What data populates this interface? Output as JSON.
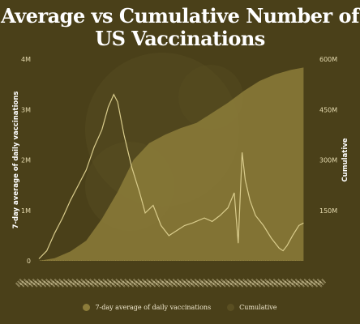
{
  "title": "Average vs Cumulative Number of\nUS Vaccinations",
  "colors": {
    "background": "#4a4019",
    "daily_line": "#d9cc8c",
    "cumulative_fill": "#8c7c3a",
    "text": "#ffffff"
  },
  "legend": [
    {
      "label": "7-day average of daily vaccinations",
      "color": "#8c7c3a"
    },
    {
      "label": "Cumulative",
      "color": "#5a4f22"
    }
  ],
  "chart_data": {
    "type": "line",
    "title": "Average vs Cumulative Number of US Vaccinations",
    "x_unit": "day index",
    "x_range": [
      0,
      350
    ],
    "left_axis": {
      "label": "7-day average of daily vaccinations",
      "ticks": [
        "0",
        "1M",
        "2M",
        "3M",
        "4M"
      ],
      "range": [
        0,
        4000000
      ]
    },
    "right_axis": {
      "label": "Cumulative",
      "ticks": [
        "150M",
        "300M",
        "450M",
        "600M"
      ],
      "range": [
        0,
        600000000
      ]
    },
    "x_tick_labels": "dense rotated date labels (illegible)",
    "series": [
      {
        "name": "7-day average of daily vaccinations",
        "axis": "left",
        "style": "line",
        "points": [
          [
            0,
            40000
          ],
          [
            10,
            200000
          ],
          [
            20,
            550000
          ],
          [
            30,
            850000
          ],
          [
            40,
            1200000
          ],
          [
            50,
            1500000
          ],
          [
            60,
            1800000
          ],
          [
            70,
            2250000
          ],
          [
            80,
            2600000
          ],
          [
            88,
            3050000
          ],
          [
            95,
            3300000
          ],
          [
            100,
            3150000
          ],
          [
            108,
            2500000
          ],
          [
            118,
            1850000
          ],
          [
            128,
            1350000
          ],
          [
            135,
            950000
          ],
          [
            145,
            1100000
          ],
          [
            155,
            700000
          ],
          [
            165,
            500000
          ],
          [
            175,
            600000
          ],
          [
            185,
            700000
          ],
          [
            195,
            750000
          ],
          [
            210,
            850000
          ],
          [
            220,
            780000
          ],
          [
            230,
            900000
          ],
          [
            240,
            1050000
          ],
          [
            248,
            1350000
          ],
          [
            253,
            350000
          ],
          [
            258,
            2150000
          ],
          [
            262,
            1600000
          ],
          [
            268,
            1200000
          ],
          [
            275,
            900000
          ],
          [
            285,
            700000
          ],
          [
            295,
            450000
          ],
          [
            305,
            250000
          ],
          [
            310,
            200000
          ],
          [
            315,
            300000
          ],
          [
            322,
            500000
          ],
          [
            330,
            700000
          ],
          [
            336,
            750000
          ]
        ]
      },
      {
        "name": "Cumulative",
        "axis": "right",
        "style": "area",
        "points": [
          [
            0,
            0
          ],
          [
            20,
            8000000
          ],
          [
            40,
            28000000
          ],
          [
            60,
            60000000
          ],
          [
            80,
            125000000
          ],
          [
            100,
            205000000
          ],
          [
            120,
            300000000
          ],
          [
            140,
            350000000
          ],
          [
            160,
            375000000
          ],
          [
            180,
            395000000
          ],
          [
            200,
            410000000
          ],
          [
            220,
            440000000
          ],
          [
            240,
            470000000
          ],
          [
            260,
            505000000
          ],
          [
            280,
            535000000
          ],
          [
            300,
            555000000
          ],
          [
            320,
            568000000
          ],
          [
            336,
            575000000
          ]
        ]
      }
    ],
    "grid": false,
    "legend_position": "bottom"
  }
}
